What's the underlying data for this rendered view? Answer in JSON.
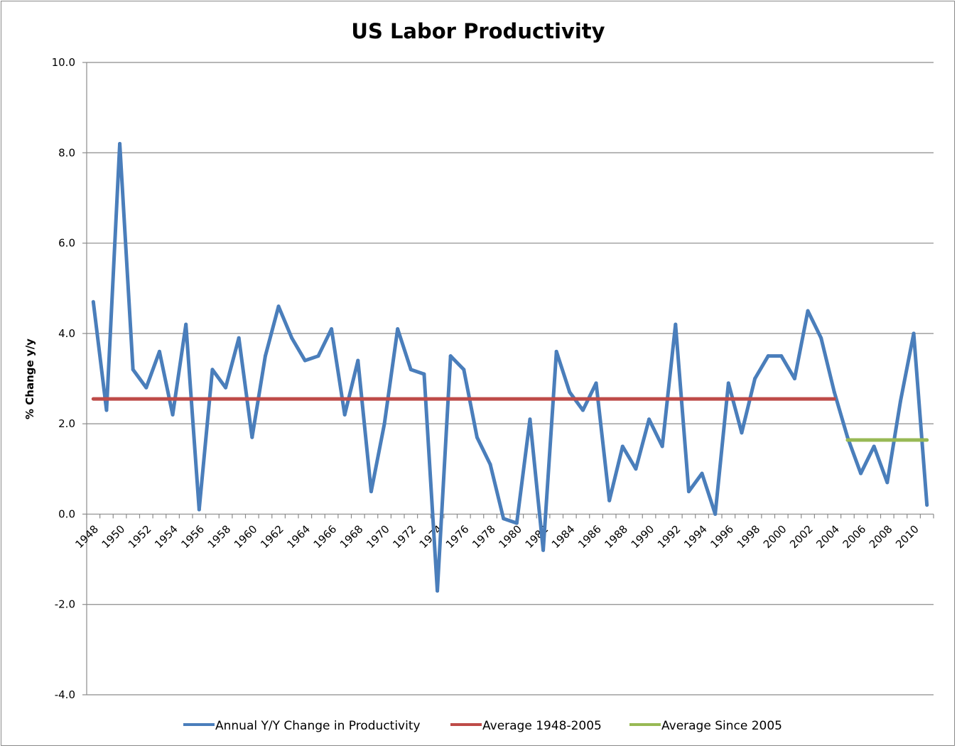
{
  "chart_data": {
    "type": "line",
    "title": "US Labor Productivity",
    "xlabel": "",
    "ylabel": "% Change y/y",
    "ylim": [
      -4,
      10
    ],
    "yticks": [
      "10.0",
      "8.0",
      "6.0",
      "4.0",
      "2.0",
      "0.0",
      "-2.0",
      "-4.0"
    ],
    "ytick_values": [
      10,
      8,
      6,
      4,
      2,
      0,
      -2,
      -4
    ],
    "grid": "horizontal",
    "legend_position": "bottom",
    "categories": [
      "1948",
      "1949",
      "1950",
      "1951",
      "1952",
      "1953",
      "1954",
      "1955",
      "1956",
      "1957",
      "1958",
      "1959",
      "1960",
      "1961",
      "1962",
      "1963",
      "1964",
      "1965",
      "1966",
      "1967",
      "1968",
      "1969",
      "1970",
      "1971",
      "1972",
      "1973",
      "1974",
      "1975",
      "1976",
      "1977",
      "1978",
      "1979",
      "1980",
      "1981",
      "1982",
      "1983",
      "1984",
      "1985",
      "1986",
      "1987",
      "1988",
      "1989",
      "1990",
      "1991",
      "1992",
      "1993",
      "1994",
      "1995",
      "1996",
      "1997",
      "1998",
      "1999",
      "2000",
      "2001",
      "2002",
      "2003",
      "2004",
      "2005",
      "2006",
      "2007",
      "2008",
      "2009",
      "2010",
      "2011"
    ],
    "xtick_labels": [
      "1948",
      "1950",
      "1952",
      "1954",
      "1956",
      "1958",
      "1960",
      "1962",
      "1964",
      "1966",
      "1968",
      "1970",
      "1972",
      "1974",
      "1976",
      "1978",
      "1980",
      "1982",
      "1984",
      "1986",
      "1988",
      "1990",
      "1992",
      "1994",
      "1996",
      "1998",
      "2000",
      "2002",
      "2004",
      "2006",
      "2008",
      "2010"
    ],
    "series": [
      {
        "name": "Annual Y/Y Change in Productivity",
        "color": "#4a7ebb",
        "values": [
          4.7,
          2.3,
          8.2,
          3.2,
          2.8,
          3.6,
          2.2,
          4.2,
          0.1,
          3.2,
          2.8,
          3.9,
          1.7,
          3.5,
          4.6,
          3.9,
          3.4,
          3.5,
          4.1,
          2.2,
          3.4,
          0.5,
          2.0,
          4.1,
          3.2,
          3.1,
          -1.7,
          3.5,
          3.2,
          1.7,
          1.1,
          -0.1,
          -0.2,
          2.1,
          -0.8,
          3.6,
          2.7,
          2.3,
          2.9,
          0.3,
          1.5,
          1.0,
          2.1,
          1.5,
          4.2,
          0.5,
          0.9,
          0.0,
          2.9,
          1.8,
          3.0,
          3.5,
          3.5,
          3.0,
          4.5,
          3.9,
          2.7,
          1.7,
          0.9,
          1.5,
          0.7,
          2.5,
          4.0,
          0.2
        ]
      },
      {
        "name": "Average 1948-2005",
        "color": "#be4b48",
        "from": "1948",
        "to": "2004",
        "value": 2.55
      },
      {
        "name": "Average Since 2005",
        "color": "#98b954",
        "from": "2005",
        "to": "2011",
        "value": 1.64
      }
    ]
  }
}
